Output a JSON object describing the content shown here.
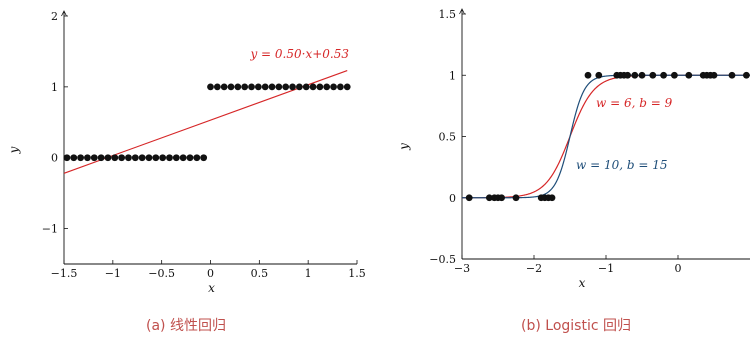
{
  "chart_data": [
    {
      "type": "scatter",
      "caption": "(a) 线性回归",
      "xlabel": "x",
      "ylabel": "y",
      "xlim": [
        -1.5,
        1.5
      ],
      "ylim": [
        -1.5,
        2
      ],
      "xticks": [
        {
          "v": -1.5,
          "label": "−1.5"
        },
        {
          "v": -1,
          "label": "−1"
        },
        {
          "v": -0.5,
          "label": "−0.5"
        },
        {
          "v": 0,
          "label": "0"
        },
        {
          "v": 0.5,
          "label": "0.5"
        },
        {
          "v": 1,
          "label": "1"
        },
        {
          "v": 1.5,
          "label": "1.5"
        }
      ],
      "yticks": [
        {
          "v": -1,
          "label": "−1"
        },
        {
          "v": 0,
          "label": "0"
        },
        {
          "v": 1,
          "label": "1"
        },
        {
          "v": 2,
          "label": "2"
        }
      ],
      "grid": false,
      "points_x": [
        -1.47,
        -1.4,
        -1.33,
        -1.26,
        -1.19,
        -1.12,
        -1.05,
        -0.98,
        -0.91,
        -0.84,
        -0.77,
        -0.7,
        -0.63,
        -0.56,
        -0.49,
        -0.42,
        -0.35,
        -0.28,
        -0.21,
        -0.14,
        -0.07,
        0.0,
        0.07,
        0.14,
        0.21,
        0.28,
        0.35,
        0.42,
        0.49,
        0.56,
        0.63,
        0.7,
        0.77,
        0.84,
        0.91,
        0.98,
        1.05,
        1.12,
        1.19,
        1.26,
        1.33,
        1.4
      ],
      "points_y": [
        0,
        0,
        0,
        0,
        0,
        0,
        0,
        0,
        0,
        0,
        0,
        0,
        0,
        0,
        0,
        0,
        0,
        0,
        0,
        0,
        0,
        1,
        1,
        1,
        1,
        1,
        1,
        1,
        1,
        1,
        1,
        1,
        1,
        1,
        1,
        1,
        1,
        1,
        1,
        1,
        1,
        1
      ],
      "fit_line": {
        "slope": 0.5,
        "intercept": 0.53,
        "x_range": [
          -1.5,
          1.4
        ],
        "label": "y = 0.50·x+0.53",
        "color": "#d62728"
      },
      "point_color": "#111111"
    },
    {
      "type": "scatter",
      "caption": "(b) Logistic 回归",
      "xlabel": "x",
      "ylabel": "y",
      "xlim": [
        -3,
        1
      ],
      "ylim": [
        -0.5,
        1.5
      ],
      "xticks": [
        {
          "v": -3,
          "label": "−3"
        },
        {
          "v": -2,
          "label": "−2"
        },
        {
          "v": -1,
          "label": "−1"
        },
        {
          "v": 0,
          "label": "0"
        }
      ],
      "yticks": [
        {
          "v": -0.5,
          "label": "−0.5"
        },
        {
          "v": 0,
          "label": "0"
        },
        {
          "v": 0.5,
          "label": "0.5"
        },
        {
          "v": 1,
          "label": "1"
        },
        {
          "v": 1.5,
          "label": "1.5"
        }
      ],
      "grid": false,
      "points_x": [
        -2.9,
        -2.62,
        -2.55,
        -2.5,
        -2.45,
        -2.25,
        -1.9,
        -1.85,
        -1.8,
        -1.75,
        -1.25,
        -1.1,
        -0.85,
        -0.8,
        -0.75,
        -0.7,
        -0.6,
        -0.5,
        -0.35,
        -0.2,
        -0.05,
        0.15,
        0.35,
        0.4,
        0.45,
        0.5,
        0.75,
        0.95
      ],
      "points_y": [
        0,
        0,
        0,
        0,
        0,
        0,
        0,
        0,
        0,
        0,
        1,
        1,
        1,
        1,
        1,
        1,
        1,
        1,
        1,
        1,
        1,
        1,
        1,
        1,
        1,
        1,
        1,
        1
      ],
      "curves": [
        {
          "label": "w = 6, b = 9",
          "w": 6,
          "b": 9,
          "color": "#d62728"
        },
        {
          "label": "w = 10, b = 15",
          "w": 10,
          "b": 15,
          "color": "#1f4e79"
        }
      ],
      "point_color": "#111111"
    }
  ]
}
